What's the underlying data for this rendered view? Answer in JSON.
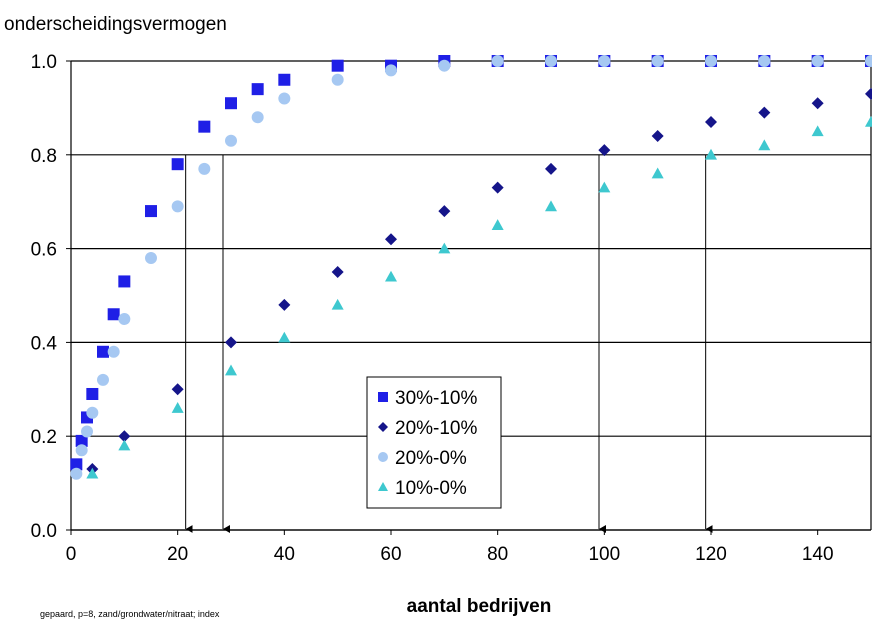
{
  "chart_data": {
    "type": "scatter",
    "ylabel": "onderscheidingsvermogen",
    "xlabel": "aantal bedrijven",
    "footnote": "gepaard, p=8, zand/grondwater/nitraat; index",
    "xlim": [
      0,
      150
    ],
    "ylim": [
      0.0,
      1.0
    ],
    "x_ticks": [
      "0",
      "20",
      "40",
      "60",
      "80",
      "100",
      "120",
      "140"
    ],
    "y_ticks": [
      "0.0",
      "0.2",
      "0.4",
      "0.6",
      "0.8",
      "1.0"
    ],
    "grid": "horizontal",
    "legend_position": "center",
    "series": [
      {
        "name": "30%-10%",
        "marker": "square",
        "color": "#1f1fe6",
        "points": [
          [
            1,
            0.14
          ],
          [
            2,
            0.19
          ],
          [
            3,
            0.24
          ],
          [
            4,
            0.29
          ],
          [
            6,
            0.38
          ],
          [
            8,
            0.46
          ],
          [
            10,
            0.53
          ],
          [
            15,
            0.68
          ],
          [
            20,
            0.78
          ],
          [
            25,
            0.86
          ],
          [
            30,
            0.91
          ],
          [
            35,
            0.94
          ],
          [
            40,
            0.96
          ],
          [
            50,
            0.99
          ],
          [
            60,
            0.99
          ],
          [
            70,
            1.0
          ],
          [
            80,
            1.0
          ],
          [
            90,
            1.0
          ],
          [
            100,
            1.0
          ],
          [
            110,
            1.0
          ],
          [
            120,
            1.0
          ],
          [
            130,
            1.0
          ],
          [
            140,
            1.0
          ],
          [
            150,
            1.0
          ]
        ]
      },
      {
        "name": "20%-10%",
        "marker": "diamond",
        "color": "#15158a",
        "points": [
          [
            4,
            0.13
          ],
          [
            10,
            0.2
          ],
          [
            20,
            0.3
          ],
          [
            30,
            0.4
          ],
          [
            40,
            0.48
          ],
          [
            50,
            0.55
          ],
          [
            60,
            0.62
          ],
          [
            70,
            0.68
          ],
          [
            80,
            0.73
          ],
          [
            90,
            0.77
          ],
          [
            100,
            0.81
          ],
          [
            110,
            0.84
          ],
          [
            120,
            0.87
          ],
          [
            130,
            0.89
          ],
          [
            140,
            0.91
          ],
          [
            150,
            0.93
          ]
        ]
      },
      {
        "name": "20%-0%",
        "marker": "circle",
        "color": "#a6c8f2",
        "points": [
          [
            1,
            0.12
          ],
          [
            2,
            0.17
          ],
          [
            3,
            0.21
          ],
          [
            4,
            0.25
          ],
          [
            6,
            0.32
          ],
          [
            8,
            0.38
          ],
          [
            10,
            0.45
          ],
          [
            15,
            0.58
          ],
          [
            20,
            0.69
          ],
          [
            25,
            0.77
          ],
          [
            30,
            0.83
          ],
          [
            35,
            0.88
          ],
          [
            40,
            0.92
          ],
          [
            50,
            0.96
          ],
          [
            60,
            0.98
          ],
          [
            70,
            0.99
          ],
          [
            80,
            1.0
          ],
          [
            90,
            1.0
          ],
          [
            100,
            1.0
          ],
          [
            110,
            1.0
          ],
          [
            120,
            1.0
          ],
          [
            130,
            1.0
          ],
          [
            140,
            1.0
          ],
          [
            150,
            1.0
          ]
        ]
      },
      {
        "name": "10%-0%",
        "marker": "triangle",
        "color": "#3ec8cf",
        "points": [
          [
            4,
            0.12
          ],
          [
            10,
            0.18
          ],
          [
            20,
            0.26
          ],
          [
            30,
            0.34
          ],
          [
            40,
            0.41
          ],
          [
            50,
            0.48
          ],
          [
            60,
            0.54
          ],
          [
            70,
            0.6
          ],
          [
            80,
            0.65
          ],
          [
            90,
            0.69
          ],
          [
            100,
            0.73
          ],
          [
            110,
            0.76
          ],
          [
            120,
            0.8
          ],
          [
            130,
            0.82
          ],
          [
            140,
            0.85
          ],
          [
            150,
            0.87
          ]
        ]
      }
    ],
    "annotations": [
      {
        "type": "drop-arrow",
        "x": 21.5,
        "y_from": 0.8
      },
      {
        "type": "drop-arrow",
        "x": 28.5,
        "y_from": 0.8
      },
      {
        "type": "drop-arrow",
        "x": 99,
        "y_from": 0.8
      },
      {
        "type": "drop-arrow",
        "x": 119,
        "y_from": 0.8
      }
    ]
  }
}
